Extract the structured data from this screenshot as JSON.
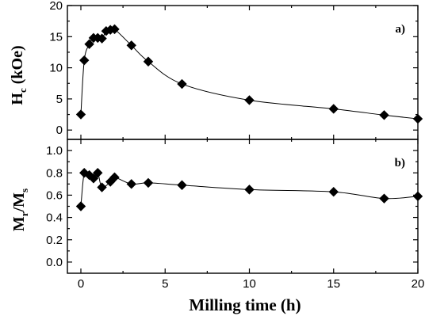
{
  "chart_data": [
    {
      "type": "scatter",
      "panel_label": "a)",
      "ylabel": "H",
      "ylabel_sub": "c",
      "ylabel_unit": " (kOe)",
      "xlim": [
        -0.8,
        20
      ],
      "ylim": [
        -1.5,
        20
      ],
      "yticks": [
        0,
        5,
        10,
        15,
        20
      ],
      "grid": false,
      "series": [
        {
          "x": [
            0,
            0.2,
            0.5,
            0.75,
            1.0,
            1.25,
            1.5,
            1.75,
            2.0,
            3,
            4,
            6,
            10,
            15,
            18,
            20
          ],
          "y": [
            2.5,
            11.2,
            13.8,
            14.8,
            14.8,
            14.7,
            15.9,
            16.1,
            16.2,
            13.6,
            11.0,
            7.4,
            4.8,
            3.4,
            2.4,
            1.8
          ]
        }
      ]
    },
    {
      "type": "scatter",
      "panel_label": "b)",
      "ylabel": "M",
      "ylabel_sub1": "r",
      "ylabel_mid": "/M",
      "ylabel_sub2": "s",
      "xlabel": "Milling time (h)",
      "xlim": [
        -0.8,
        20
      ],
      "ylim": [
        -0.1,
        1.1
      ],
      "yticks": [
        "0.0",
        "0.2",
        "0.4",
        "0.6",
        "0.8",
        "1.0"
      ],
      "xticks": [
        "0",
        "5",
        "10",
        "15",
        "20"
      ],
      "grid": false,
      "series": [
        {
          "x": [
            0,
            0.2,
            0.5,
            0.75,
            1.0,
            1.25,
            1.75,
            2.0,
            3,
            4,
            6,
            10,
            15,
            18,
            20
          ],
          "y": [
            0.5,
            0.8,
            0.78,
            0.75,
            0.8,
            0.67,
            0.72,
            0.76,
            0.7,
            0.71,
            0.69,
            0.65,
            0.63,
            0.57,
            0.59
          ]
        }
      ]
    }
  ]
}
